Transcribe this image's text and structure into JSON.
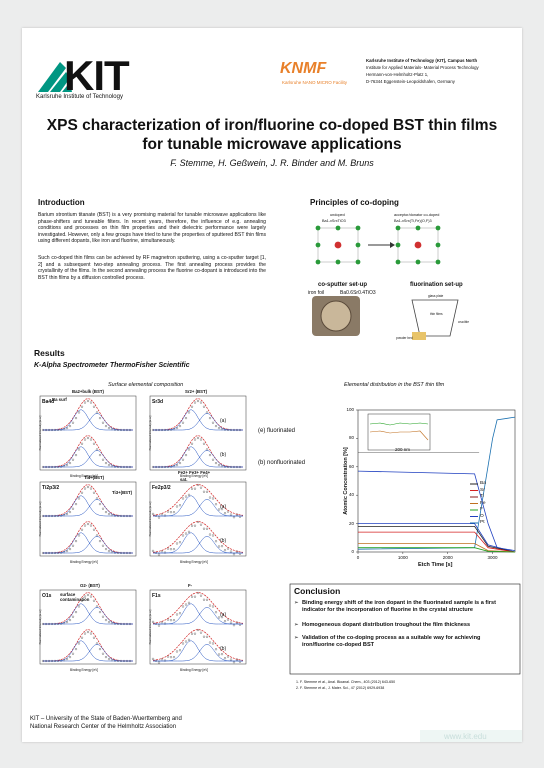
{
  "header": {
    "logo": "KIT",
    "institute": "Karlsruhe Institute of Technology",
    "knmf": "KNMF",
    "knmf_sub": "Karlsruhe NANO MICRO Facility",
    "address": [
      "Karlsruhe Institute of Technology (KIT), Campus North",
      "Institute for Applied Materials- Material Process Technology",
      "Hermann-von-Helmholtz-Platz 1,",
      "D-76344 Eggenstein-Leopoldshafen, Germany"
    ]
  },
  "title": "XPS characterization of iron/fluorine co-doped BST thin films for tunable microwave applications",
  "authors": "F. Stemme, H. Geßwein, J. R. Binder and M. Bruns",
  "introduction": {
    "heading": "Introduction",
    "paragraphs": [
      "Barium strontium titanate (BST) is a very promising material for tunable microwave applications like phase-shifters and tuneable filters. In recent years, therefore, the influence of e.g. annealing conditions and processes on thin film properties and their dielectric performance were largely investigated. However, only a few groups have tried to tune the properties of sputtered BST thin films using different dopants, like iron and fluorine, simultaneously.",
      "Such co-doped thin films can be achieved by RF magnetron sputtering, using a co-sputter target [1, 2] and a subsequent two-step annealing process. The first annealing process provides the crystallinity of the films. In the second annealing process the fluorine co-dopant is introduced into the BST thin films by a diffusion controlled process."
    ]
  },
  "principles": {
    "heading": "Principles of co-doping",
    "undoped": "undoped",
    "undoped_formula": "Ba1-xSrxTiO3",
    "codoped": "acceptor/donator co-doped",
    "codoped_formula": "Ba1-xSrx(Ti,Fe)(O,F)3",
    "co_sputter": "co-sputter set-up",
    "fluorination": "fluorination set-up",
    "iron_foil": "iron foil",
    "target": "Ba0.6Sr0.4TiO3",
    "glass_plate": "glass plate",
    "thin_films": "thin films",
    "crucible": "crucible",
    "powder": "powder bed"
  },
  "results": {
    "heading": "Results",
    "subheading": "K-Alpha Spectrometer ThermoFisher Scientific"
  },
  "surface": {
    "title": "Surface elemental composition",
    "xlabel": "Binding Energy [eV]",
    "ylabel": "Normalized Intensity [a.u.]",
    "fluorinated": "(e) fluorinated",
    "nonfluorinated": "(b) nonfluorinated",
    "a": "(a)",
    "b": "(b)",
    "panels": [
      "Ba4d",
      "Sr3d",
      "Ti2p3/2",
      "Fe2p3/2",
      "O1s",
      "F1s"
    ],
    "peaks": [
      "Ba2+bulk (BST)",
      "Ba surf",
      "Sr2+ (BST)",
      "Ti4+(BST)",
      "Ti3+(BST)",
      "Fe2+  Fe3+  Fe4+",
      "sat.",
      "O2- (BST)",
      "surface contamination",
      "F-"
    ]
  },
  "depth": {
    "title": "Elemental distribution in the BST thin film",
    "xlabel": "Etch Time [s]",
    "ylabel": "Atomic Concentration [%]",
    "xticks": [
      0,
      1000,
      2000,
      3000
    ],
    "yticks": [
      0,
      20,
      40,
      60,
      80,
      100
    ],
    "thickness": "200 nm",
    "legend": [
      {
        "name": "Ba",
        "color": "#222222"
      },
      {
        "name": "Sr",
        "color": "#d62020"
      },
      {
        "name": "Ti",
        "color": "#8b1a1a"
      },
      {
        "name": "Fe",
        "color": "#c07020"
      },
      {
        "name": "F",
        "color": "#20a020"
      },
      {
        "name": "O",
        "color": "#2040c0"
      },
      {
        "name": "Pt",
        "color": "#1a70b0"
      }
    ]
  },
  "conclusion": {
    "heading": "Conclusion",
    "bullets": [
      "Binding energy shift of the iron dopant in the fluorinated sample is a first indicator for the incorporation of fluorine in the crystal structure",
      "Homogeneous dopant distribution troughout the film thickness",
      "Validation of the co-doping process as a suitable way for achieving iron/fluorine co-doped BST"
    ]
  },
  "references": [
    "1.   F. Stemme et al., Anal. Bioanal. Chem., 403 (2012) 643-650",
    "2.   F. Stemme et al., J. Mater. Sci., 47 (2012) 6929-6938"
  ],
  "footer": [
    "KIT – University of the State of Baden-Wuerttemberg and",
    "National Research Center of the Helmholtz Association"
  ],
  "url": "www.kit.edu"
}
